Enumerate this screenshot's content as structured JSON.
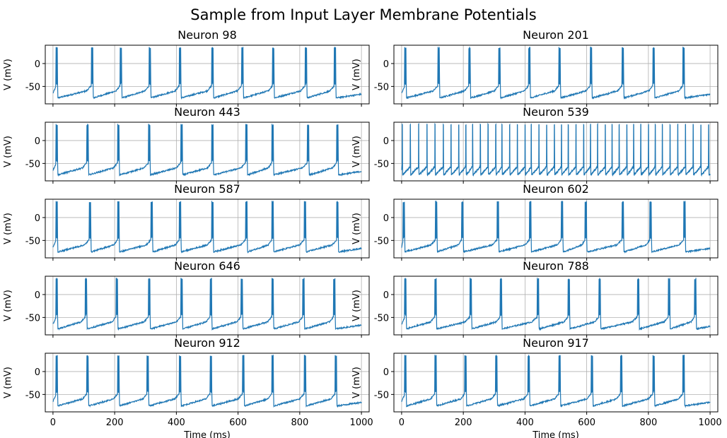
{
  "figure": {
    "title": "Sample from Input Layer Membrane Potentials"
  },
  "chart_data": {
    "type": "line",
    "layout": "5x2 grid of line plots",
    "xlabel": "Time (ms)",
    "ylabel": "V (mV)",
    "xlim": [
      -25,
      1025
    ],
    "ylim": [
      -88,
      40
    ],
    "xticks": [
      0,
      200,
      400,
      600,
      800,
      1000
    ],
    "yticks": [
      -50,
      0
    ],
    "grid": true,
    "line_color": "#1f77b4",
    "baseline_trough_mV": -75,
    "spike_peak_mV": 40,
    "panels": [
      {
        "title": "Neuron 98",
        "burst_times_ms": [
          10,
          125,
          218,
          312,
          410,
          515,
          612,
          712,
          818,
          912
        ]
      },
      {
        "title": "Neuron 201",
        "burst_times_ms": [
          10,
          118,
          218,
          315,
          412,
          510,
          612,
          715,
          815,
          912
        ]
      },
      {
        "title": "Neuron 443",
        "burst_times_ms": [
          10,
          110,
          210,
          310,
          415,
          515,
          625,
          710,
          825,
          920
        ]
      },
      {
        "title": "Neuron 539",
        "burst_times_ms": [
          2,
          28,
          55,
          82,
          108,
          135,
          160,
          185,
          208,
          230,
          255,
          280,
          305,
          325,
          350,
          375,
          400,
          420,
          445,
          470,
          495,
          518,
          540,
          565,
          590,
          612,
          635,
          660,
          682,
          705,
          730,
          752,
          775,
          800,
          822,
          845,
          870,
          895,
          920,
          945,
          970,
          995
        ]
      },
      {
        "title": "Neuron 587",
        "burst_times_ms": [
          10,
          118,
          210,
          318,
          410,
          515,
          625,
          710,
          815,
          920
        ]
      },
      {
        "title": "Neuron 602",
        "burst_times_ms": [
          5,
          110,
          195,
          310,
          415,
          518,
          595,
          715,
          805,
          915
        ]
      },
      {
        "title": "Neuron 646",
        "burst_times_ms": [
          10,
          105,
          205,
          310,
          415,
          510,
          610,
          710,
          810,
          910
        ]
      },
      {
        "title": "Neuron 788",
        "burst_times_ms": [
          10,
          108,
          222,
          320,
          440,
          540,
          640,
          765,
          865,
          950
        ]
      },
      {
        "title": "Neuron 912",
        "burst_times_ms": [
          10,
          110,
          210,
          305,
          410,
          510,
          615,
          710,
          815,
          915
        ]
      },
      {
        "title": "Neuron 917",
        "burst_times_ms": [
          10,
          108,
          205,
          305,
          410,
          510,
          615,
          710,
          815,
          912
        ]
      }
    ]
  }
}
